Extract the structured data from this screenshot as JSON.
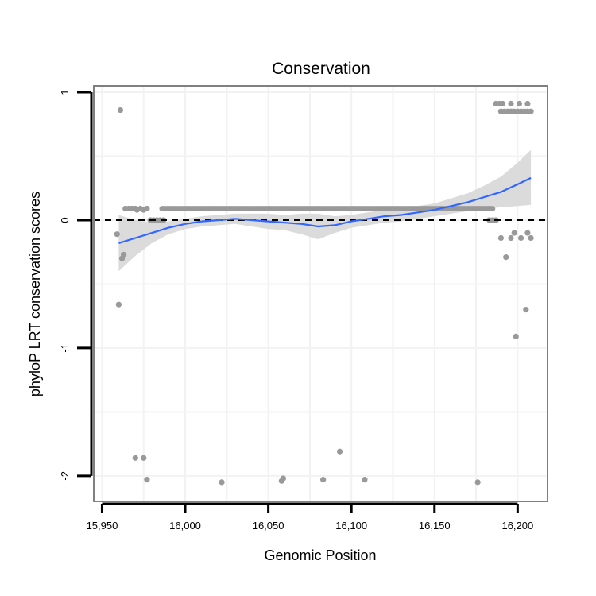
{
  "chart_data": {
    "type": "scatter",
    "title": "Conservation",
    "xlabel": "Genomic Position",
    "ylabel": "phyloP LRT conservation scores",
    "xlim": [
      15945,
      16218
    ],
    "ylim": [
      -2.2,
      1.05
    ],
    "x_ticks": [
      15950,
      16000,
      16050,
      16100,
      16150,
      16200
    ],
    "x_tick_labels": [
      "15,950",
      "16,000",
      "16,050",
      "16,100",
      "16,150",
      "16,200"
    ],
    "y_ticks": [
      -2,
      -1,
      0,
      1
    ],
    "y_tick_labels": [
      "-2",
      "-1",
      "0",
      "1"
    ],
    "reference_line": {
      "y": 0,
      "style": "dashed"
    },
    "points": [
      [
        15959,
        -0.11
      ],
      [
        15960,
        -0.66
      ],
      [
        15961,
        0.86
      ],
      [
        15962,
        -0.3
      ],
      [
        15963,
        -0.27
      ],
      [
        15964,
        0.09
      ],
      [
        15966,
        0.09
      ],
      [
        15968,
        0.09
      ],
      [
        15970,
        0.09
      ],
      [
        15971,
        0.08
      ],
      [
        15973,
        0.09
      ],
      [
        15975,
        0.08
      ],
      [
        15977,
        0.09
      ],
      [
        15970,
        -1.86
      ],
      [
        15975,
        -1.86
      ],
      [
        15977,
        -2.03
      ],
      [
        15979,
        0.0
      ],
      [
        15981,
        0.0
      ],
      [
        15983,
        0.0
      ],
      [
        15985,
        0.0
      ],
      [
        15987,
        0.0
      ],
      [
        16022,
        -2.05
      ],
      [
        16058,
        -2.04
      ],
      [
        16059,
        -2.02
      ],
      [
        16083,
        -2.03
      ],
      [
        16093,
        -1.81
      ],
      [
        16108,
        -2.03
      ],
      [
        16176,
        -2.05
      ],
      [
        16183,
        0.0
      ],
      [
        16185,
        0.0
      ],
      [
        16187,
        0.0
      ],
      [
        16187,
        0.91
      ],
      [
        16189,
        0.91
      ],
      [
        16191,
        0.91
      ],
      [
        16196,
        0.91
      ],
      [
        16201,
        0.91
      ],
      [
        16206,
        0.91
      ],
      [
        16190,
        0.85
      ],
      [
        16192,
        0.85
      ],
      [
        16194,
        0.85
      ],
      [
        16196,
        0.85
      ],
      [
        16198,
        0.85
      ],
      [
        16200,
        0.85
      ],
      [
        16202,
        0.85
      ],
      [
        16204,
        0.85
      ],
      [
        16206,
        0.85
      ],
      [
        16208,
        0.85
      ],
      [
        16190,
        -0.14
      ],
      [
        16196,
        -0.14
      ],
      [
        16198,
        -0.1
      ],
      [
        16202,
        -0.14
      ],
      [
        16206,
        -0.1
      ],
      [
        16208,
        -0.14
      ],
      [
        16193,
        -0.29
      ],
      [
        16199,
        -0.91
      ],
      [
        16205,
        -0.7
      ]
    ],
    "dense_band": {
      "x_start": 15986,
      "x_end": 16185,
      "step": 1,
      "y": 0.09
    },
    "smooth": {
      "x": [
        15960,
        15970,
        15980,
        15990,
        16000,
        16010,
        16020,
        16030,
        16040,
        16050,
        16060,
        16070,
        16080,
        16090,
        16100,
        16110,
        16120,
        16130,
        16140,
        16150,
        16160,
        16170,
        16180,
        16190,
        16200,
        16208
      ],
      "y": [
        -0.18,
        -0.14,
        -0.1,
        -0.06,
        -0.03,
        -0.01,
        0.0,
        0.01,
        0.0,
        -0.01,
        -0.02,
        -0.03,
        -0.05,
        -0.04,
        -0.01,
        0.01,
        0.03,
        0.04,
        0.06,
        0.08,
        0.11,
        0.14,
        0.18,
        0.22,
        0.28,
        0.33
      ],
      "lower": [
        -0.4,
        -0.28,
        -0.18,
        -0.11,
        -0.07,
        -0.05,
        -0.04,
        -0.03,
        -0.05,
        -0.07,
        -0.08,
        -0.11,
        -0.15,
        -0.1,
        -0.06,
        -0.04,
        -0.02,
        -0.01,
        0.01,
        0.03,
        0.05,
        0.07,
        0.09,
        0.1,
        0.11,
        0.12
      ],
      "upper": [
        0.04,
        0.0,
        -0.02,
        -0.01,
        0.01,
        0.03,
        0.04,
        0.05,
        0.05,
        0.05,
        0.04,
        0.05,
        0.05,
        0.03,
        0.04,
        0.06,
        0.08,
        0.09,
        0.11,
        0.13,
        0.17,
        0.21,
        0.27,
        0.34,
        0.45,
        0.55
      ]
    },
    "colors": {
      "point": "#999999",
      "smooth_line": "#3366ff",
      "ribbon": "#d9d9d9",
      "grid": "#f2f2f2",
      "panel_border": "#808080",
      "axis": "#000000"
    }
  }
}
